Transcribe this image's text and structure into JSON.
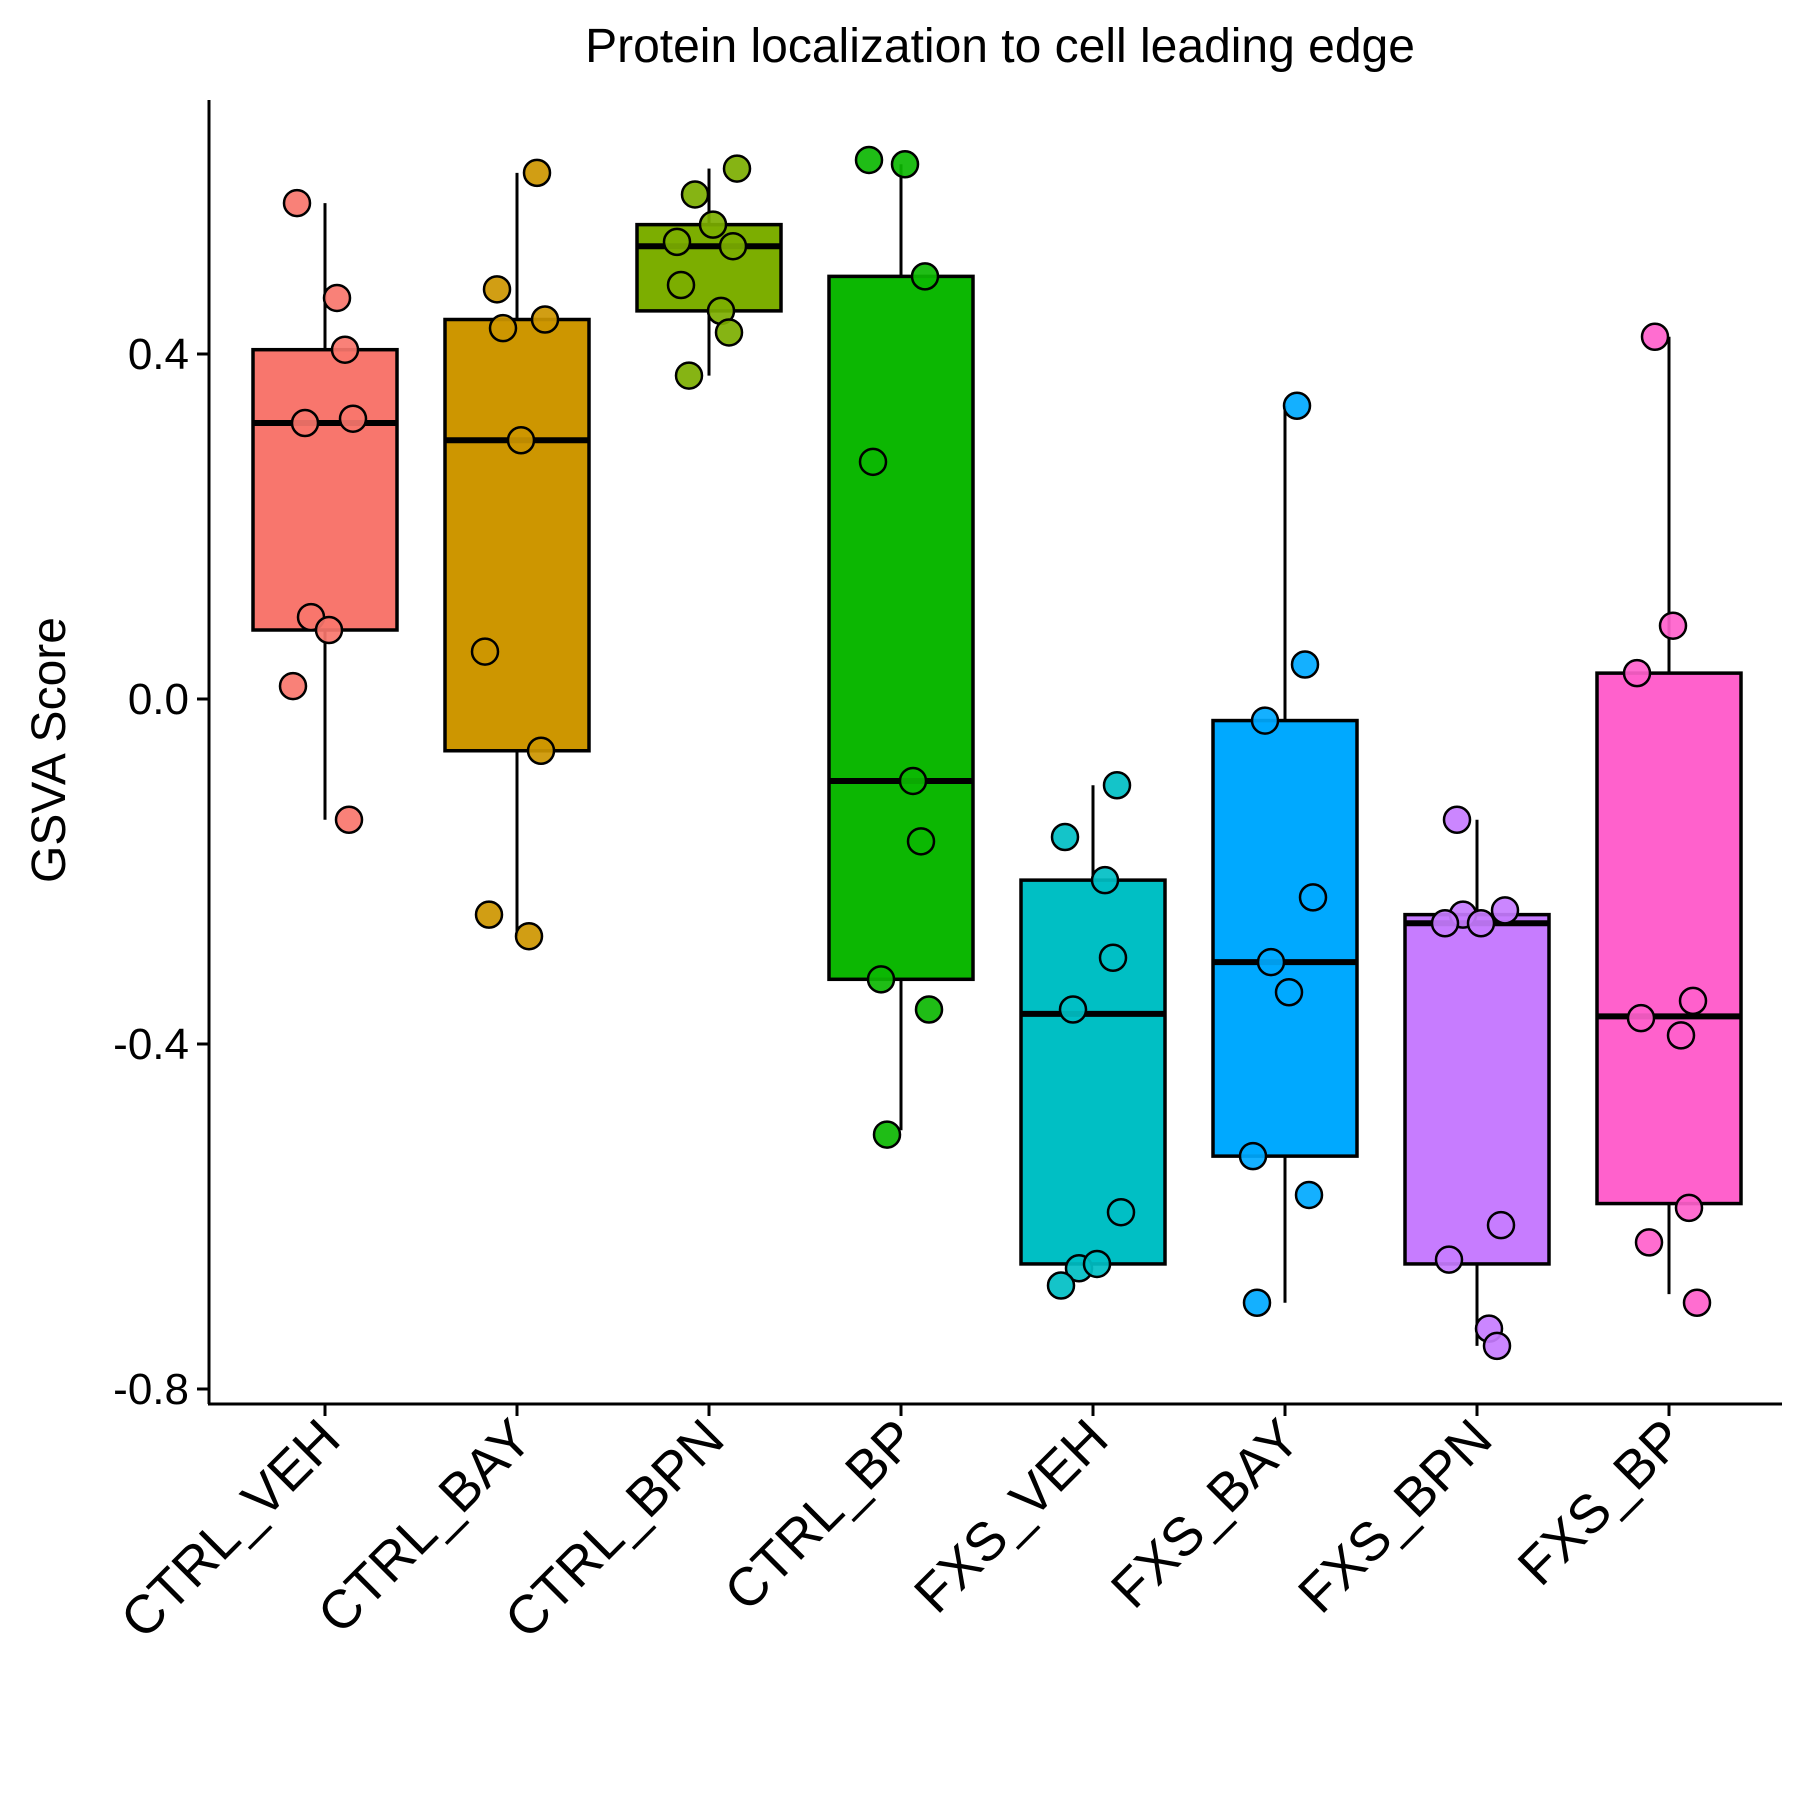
{
  "chart_data": {
    "type": "box",
    "title": "Protein localization to cell leading edge",
    "xlabel": "",
    "ylabel": "GSVA Score",
    "ylim": [
      -0.82,
      0.69
    ],
    "y_ticks": [
      -0.8,
      -0.4,
      0.0,
      0.4
    ],
    "y_tick_labels": [
      "-0.8",
      "-0.4",
      "0.0",
      "0.4"
    ],
    "grid": false,
    "legend": "none",
    "categories": [
      "CTRL_VEH",
      "CTRL_BAY",
      "CTRL_BPN",
      "CTRL_BP",
      "FXS_VEH",
      "FXS_BAY",
      "FXS_BPN",
      "FXS_BP"
    ],
    "series": [
      {
        "category": "CTRL_VEH",
        "color": "#F8766D",
        "whisker_low": -0.14,
        "q1": 0.08,
        "median": 0.32,
        "q3": 0.405,
        "whisker_high": 0.575,
        "points": [
          0.575,
          0.465,
          0.405,
          0.32,
          0.325,
          0.095,
          0.08,
          0.015,
          -0.14
        ]
      },
      {
        "category": "CTRL_BAY",
        "color": "#CD9600",
        "whisker_low": -0.275,
        "q1": -0.06,
        "median": 0.3,
        "q3": 0.44,
        "whisker_high": 0.61,
        "points": [
          0.61,
          0.475,
          0.44,
          0.43,
          0.3,
          0.055,
          -0.06,
          -0.25,
          -0.275
        ]
      },
      {
        "category": "CTRL_BPN",
        "color": "#7CAE00",
        "whisker_low": 0.375,
        "q1": 0.45,
        "median": 0.525,
        "q3": 0.55,
        "whisker_high": 0.615,
        "points": [
          0.615,
          0.585,
          0.55,
          0.53,
          0.525,
          0.48,
          0.45,
          0.425,
          0.375
        ]
      },
      {
        "category": "CTRL_BP",
        "color": "#0CB702",
        "whisker_low": -0.5,
        "q1": -0.325,
        "median": -0.095,
        "q3": 0.49,
        "whisker_high": 0.62,
        "points": [
          0.62,
          0.625,
          0.49,
          0.275,
          -0.095,
          -0.165,
          -0.325,
          -0.36,
          -0.505
        ]
      },
      {
        "category": "FXS_VEH",
        "color": "#00BFC4",
        "whisker_low": -0.655,
        "q1": -0.655,
        "median": -0.365,
        "q3": -0.21,
        "whisker_high": -0.1,
        "points": [
          -0.1,
          -0.16,
          -0.21,
          -0.3,
          -0.36,
          -0.595,
          -0.66,
          -0.655,
          -0.68
        ]
      },
      {
        "category": "FXS_BAY",
        "color": "#00A9FF",
        "whisker_low": -0.7,
        "q1": -0.53,
        "median": -0.305,
        "q3": -0.025,
        "whisker_high": 0.34,
        "points": [
          0.34,
          0.04,
          -0.025,
          -0.23,
          -0.305,
          -0.34,
          -0.53,
          -0.575,
          -0.7
        ]
      },
      {
        "category": "FXS_BPN",
        "color": "#C77CFF",
        "whisker_low": -0.75,
        "q1": -0.655,
        "median": -0.26,
        "q3": -0.25,
        "whisker_high": -0.14,
        "points": [
          -0.14,
          -0.245,
          -0.25,
          -0.26,
          -0.26,
          -0.61,
          -0.65,
          -0.73,
          -0.75
        ]
      },
      {
        "category": "FXS_BP",
        "color": "#FF61CC",
        "whisker_low": -0.69,
        "q1": -0.585,
        "median": -0.368,
        "q3": 0.03,
        "whisker_high": 0.42,
        "points": [
          0.42,
          0.085,
          0.03,
          -0.35,
          -0.37,
          -0.39,
          -0.59,
          -0.63,
          -0.7
        ]
      }
    ]
  }
}
